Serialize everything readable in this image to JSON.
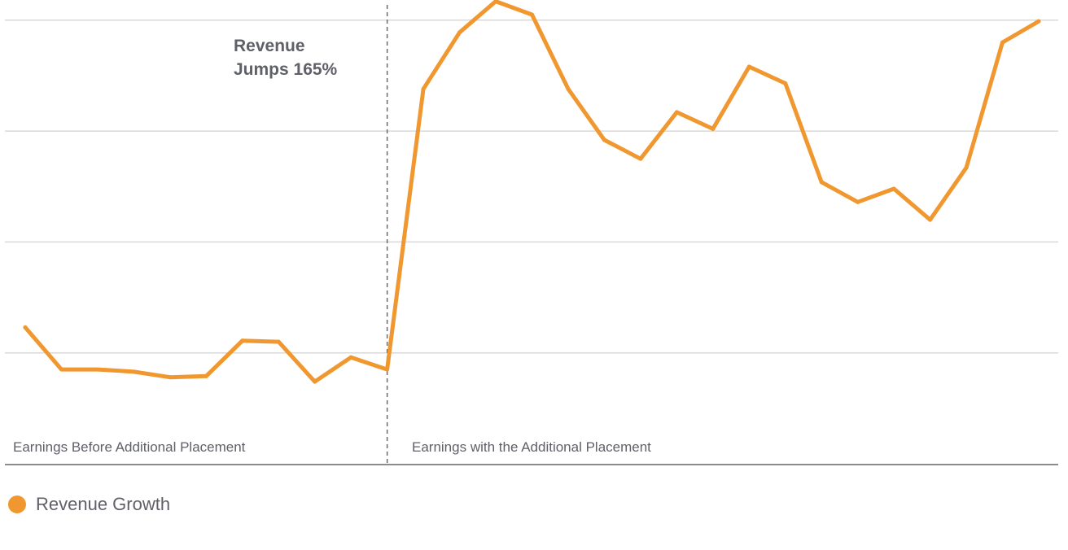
{
  "chart_data": {
    "type": "line",
    "title": "",
    "xlabel": "",
    "ylabel": "",
    "grid": true,
    "legend_position": "bottom-left",
    "ylim": [
      0,
      4
    ],
    "x": [
      1,
      2,
      3,
      4,
      5,
      6,
      7,
      8,
      9,
      10,
      11,
      12,
      13,
      14,
      15,
      16,
      17,
      18,
      19,
      20,
      21,
      22,
      23,
      24,
      25,
      26,
      27,
      28,
      29
    ],
    "series": [
      {
        "name": "Revenue Growth",
        "color": "#f0982f",
        "values": [
          1.23,
          0.85,
          0.85,
          0.83,
          0.78,
          0.79,
          1.11,
          1.1,
          0.74,
          0.96,
          0.85,
          3.38,
          3.89,
          4.17,
          4.05,
          3.38,
          2.92,
          2.75,
          3.17,
          3.02,
          3.58,
          3.43,
          2.54,
          2.36,
          2.48,
          2.2,
          2.67,
          3.8,
          3.99
        ]
      }
    ],
    "divider_after_x": 11,
    "annotations": {
      "headline": [
        "Revenue",
        "Jumps 165%"
      ],
      "region_left": "Earnings Before Additional Placement",
      "region_right": "Earnings with the Additional Placement"
    }
  }
}
